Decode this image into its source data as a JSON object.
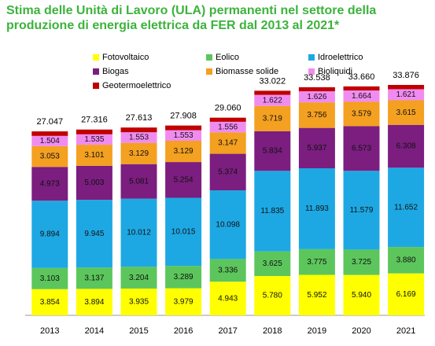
{
  "chart_data": {
    "type": "stacked-bar",
    "title": "Stima delle Unità di Lavoro (ULA) permanenti nel settore della produzione di energia elettrica da FER dal 2013 al 2021*",
    "categories": [
      "2013",
      "2014",
      "2015",
      "2016",
      "2017",
      "2018",
      "2019",
      "2020",
      "2021"
    ],
    "series": [
      {
        "name": "Fotovoltaico",
        "color": "#ffff00",
        "values": [
          3854,
          3894,
          3935,
          3979,
          4943,
          5780,
          5952,
          5940,
          6169
        ],
        "value_labels": [
          "3.854",
          "3.894",
          "3.935",
          "3.979",
          "4.943",
          "5.780",
          "5.952",
          "5.940",
          "6.169"
        ]
      },
      {
        "name": "Eolico",
        "color": "#5cc65c",
        "values": [
          3103,
          3137,
          3204,
          3289,
          3336,
          3625,
          3775,
          3725,
          3880
        ],
        "value_labels": [
          "3.103",
          "3.137",
          "3.204",
          "3.289",
          "3.336",
          "3.625",
          "3.775",
          "3.725",
          "3.880"
        ]
      },
      {
        "name": "Idroelettrico",
        "color": "#1ea8e3",
        "values": [
          9894,
          9945,
          10012,
          10015,
          10098,
          11835,
          11893,
          11579,
          11652
        ],
        "value_labels": [
          "9.894",
          "9.945",
          "10.012",
          "10.015",
          "10.098",
          "11.835",
          "11.893",
          "11.579",
          "11.652"
        ]
      },
      {
        "name": "Biogas",
        "color": "#7b1e7f",
        "values": [
          4973,
          5003,
          5081,
          5254,
          5374,
          5834,
          5937,
          6573,
          6308
        ],
        "value_labels": [
          "4.973",
          "5.003",
          "5.081",
          "5.254",
          "5.374",
          "5.834",
          "5.937",
          "6.573",
          "6.308"
        ]
      },
      {
        "name": "Biomasse solide",
        "color": "#f4a020",
        "values": [
          3053,
          3101,
          3129,
          3129,
          3147,
          3719,
          3756,
          3579,
          3615
        ],
        "value_labels": [
          "3.053",
          "3.101",
          "3.129",
          "3.129",
          "3.147",
          "3.719",
          "3.756",
          "3.579",
          "3.615"
        ]
      },
      {
        "name": "Bioliquidi",
        "color": "#f08cf0",
        "values": [
          1504,
          1535,
          1553,
          1553,
          1556,
          1622,
          1626,
          1664,
          1621
        ],
        "value_labels": [
          "1.504",
          "1.535",
          "1.553",
          "1.553",
          "1.556",
          "1.622",
          "1.626",
          "1.664",
          "1.621"
        ]
      },
      {
        "name": "Geotermoelettrico",
        "color": "#c00000",
        "values": [
          666,
          701,
          699,
          689,
          606,
          607,
          599,
          600,
          631
        ]
      }
    ],
    "totals": {
      "values": [
        27047,
        27316,
        27613,
        27908,
        29060,
        33022,
        33538,
        33660,
        33876
      ],
      "value_labels": [
        "27.047",
        "27.316",
        "27.613",
        "27.908",
        "29.060",
        "33.022",
        "33.538",
        "33.660",
        "33.876"
      ]
    }
  }
}
